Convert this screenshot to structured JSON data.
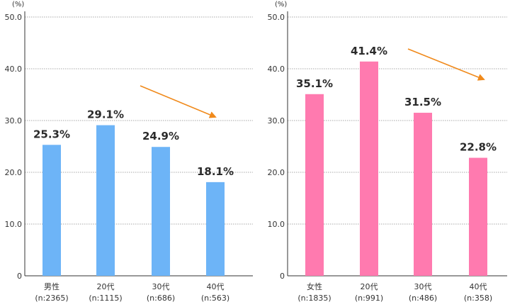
{
  "colors": {
    "male_bar": "#6db4f7",
    "female_bar": "#ff7aaf",
    "arrow": "#f08a1c",
    "grid": "#a8a8a8",
    "axis": "#333333"
  },
  "chart_data": [
    {
      "type": "bar",
      "unit": "(%)",
      "ylim": [
        0,
        50
      ],
      "yticks": [
        "0",
        "10.0",
        "20.0",
        "30.0",
        "40.0",
        "50.0"
      ],
      "grid": true,
      "categories": [
        "男性",
        "20代",
        "30代",
        "40代"
      ],
      "sample_sizes": [
        "(n:2365)",
        "(n:1115)",
        "(n:686)",
        "(n:563)"
      ],
      "values": [
        25.3,
        29.1,
        24.9,
        18.1
      ],
      "data_labels": [
        "25.3%",
        "29.1%",
        "24.9%",
        "18.1%"
      ],
      "trend_arrow": "down"
    },
    {
      "type": "bar",
      "unit": "(%)",
      "ylim": [
        0,
        50
      ],
      "yticks": [
        "0",
        "10.0",
        "20.0",
        "30.0",
        "40.0",
        "50.0"
      ],
      "grid": true,
      "categories": [
        "女性",
        "20代",
        "30代",
        "40代"
      ],
      "sample_sizes": [
        "(n:1835)",
        "(n:991)",
        "(n:486)",
        "(n:358)"
      ],
      "values": [
        35.1,
        41.4,
        31.5,
        22.8
      ],
      "data_labels": [
        "35.1%",
        "41.4%",
        "31.5%",
        "22.8%"
      ],
      "trend_arrow": "down"
    }
  ]
}
